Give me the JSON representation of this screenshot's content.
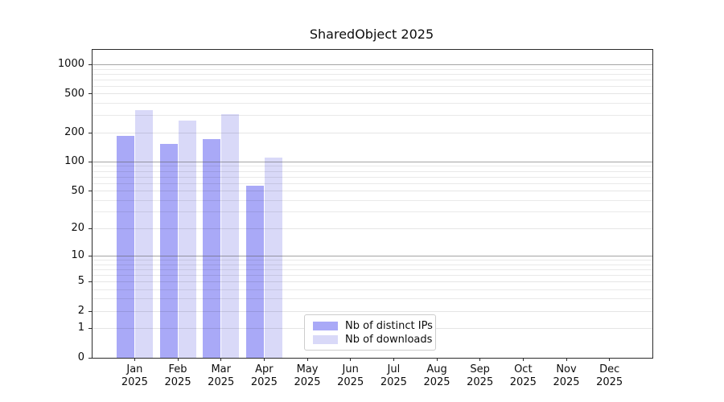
{
  "title": "SharedObject 2025",
  "chart_data": {
    "type": "bar",
    "title": "SharedObject 2025",
    "categories": [
      "Jan",
      "Feb",
      "Mar",
      "Apr",
      "May",
      "Jun",
      "Jul",
      "Aug",
      "Sep",
      "Oct",
      "Nov",
      "Dec"
    ],
    "category_year": "2025",
    "series": [
      {
        "name": "Nb of distinct IPs",
        "color": "#a9a9f7",
        "values": [
          186,
          155,
          171,
          57,
          0,
          0,
          0,
          0,
          0,
          0,
          0,
          0
        ]
      },
      {
        "name": "Nb of downloads",
        "color": "#d9d9f8",
        "values": [
          344,
          265,
          313,
          110,
          0,
          0,
          0,
          0,
          0,
          0,
          0,
          0
        ]
      }
    ],
    "xlabel": "",
    "ylabel": "",
    "y_scale": "log(1+y)",
    "ylim": [
      0,
      1430
    ],
    "y_ticks": [
      0,
      1,
      2,
      5,
      10,
      20,
      50,
      100,
      200,
      500,
      1000
    ],
    "y_major_dark_gridlines": [
      10,
      100,
      1000
    ],
    "y_major_light_gridlines": [
      1,
      2,
      5,
      20,
      50,
      200,
      500
    ],
    "y_minor_gridlines": [
      3,
      4,
      6,
      7,
      8,
      9,
      30,
      40,
      60,
      70,
      80,
      90,
      300,
      400,
      600,
      700,
      800,
      900
    ],
    "grid": true,
    "legend_position": "lower center",
    "legend_entries": [
      "Nb of distinct IPs",
      "Nb of downloads"
    ]
  },
  "colors": {
    "bar_distinct_ips": "#a9a9f7",
    "bar_downloads": "#d9d9f8",
    "grid_major_dark": "#9a9a9a",
    "grid_minor": "#e9e9e9",
    "spine": "#2b2b2b",
    "legend_border": "#cccccc",
    "background": "#ffffff"
  }
}
